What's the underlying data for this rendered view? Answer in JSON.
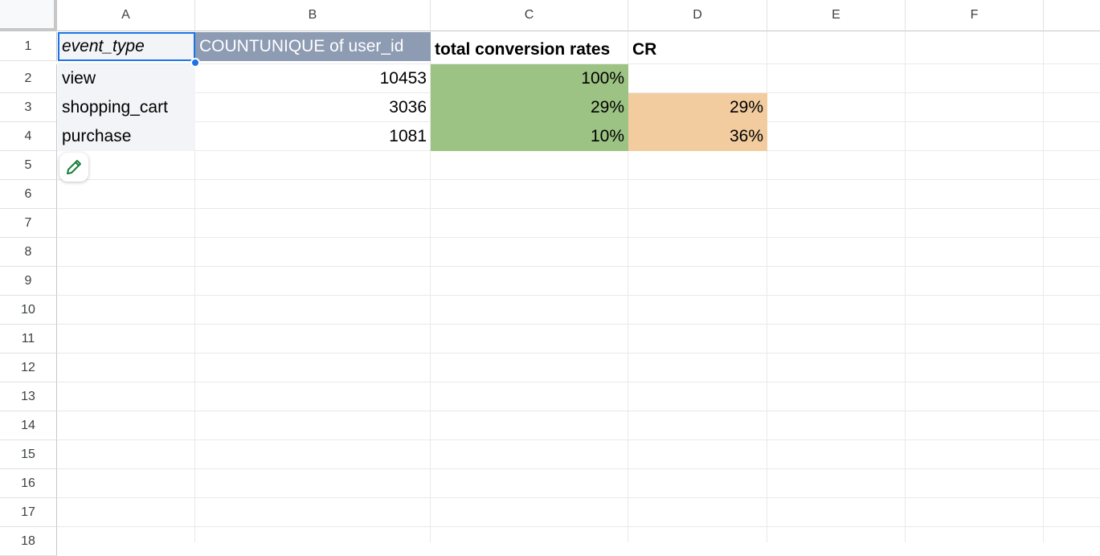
{
  "columns": [
    "A",
    "B",
    "C",
    "D",
    "E",
    "F"
  ],
  "rows": [
    "1",
    "2",
    "3",
    "4",
    "5",
    "6",
    "7",
    "8",
    "9",
    "10",
    "11",
    "12",
    "13",
    "14",
    "15",
    "16",
    "17",
    "18"
  ],
  "cells": {
    "A1": "event_type",
    "B1": "COUNTUNIQUE of user_id",
    "C1": "total conversion rates",
    "D1": "CR",
    "A2": "view",
    "B2": "10453",
    "C2": "100%",
    "A3": "shopping_cart",
    "B3": "3036",
    "C3": "29%",
    "D3": "29%",
    "A4": "purchase",
    "B4": "1081",
    "C4": "10%",
    "D4": "36%"
  },
  "colors": {
    "pivot_header": "#8d9bb3",
    "pivot_label": "#f2f4f7",
    "total_rate_fill": "#9dc384",
    "cr_fill": "#f2cc9f",
    "selection": "#1a73e8"
  },
  "icons": {
    "edit": "pencil-icon"
  }
}
